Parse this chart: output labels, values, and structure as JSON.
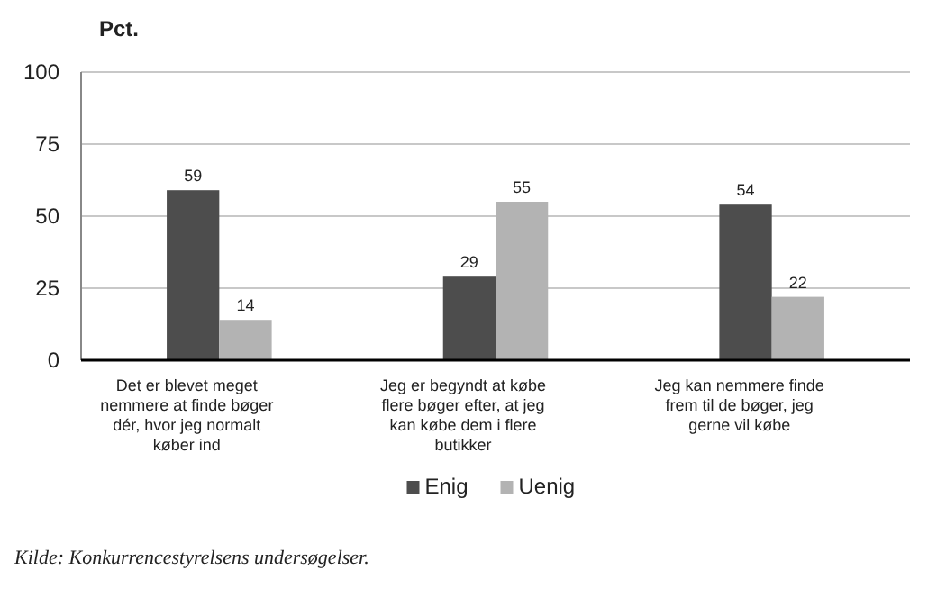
{
  "chart_data": {
    "type": "bar",
    "ylabel": "Pct.",
    "categories": [
      "Det er blevet meget nemmere at finde bøger dér, hvor jeg normalt køber ind",
      "Jeg er begyndt at købe flere bøger efter, at jeg kan købe dem i flere butikker",
      "Jeg kan nemmere finde frem til de bøger, jeg gerne vil købe"
    ],
    "series": [
      {
        "name": "Enig",
        "color": "#4d4d4d",
        "values": [
          59,
          29,
          54
        ]
      },
      {
        "name": "Uenig",
        "color": "#b3b3b3",
        "values": [
          14,
          55,
          22
        ]
      }
    ],
    "ylim": [
      0,
      100
    ],
    "yticks": [
      0,
      25,
      50,
      75,
      100
    ],
    "grid": "y",
    "legend": "bottom",
    "data_labels": true,
    "annotations": [
      "Kilde: Konkurrencestyrelsens undersøgelser."
    ]
  }
}
